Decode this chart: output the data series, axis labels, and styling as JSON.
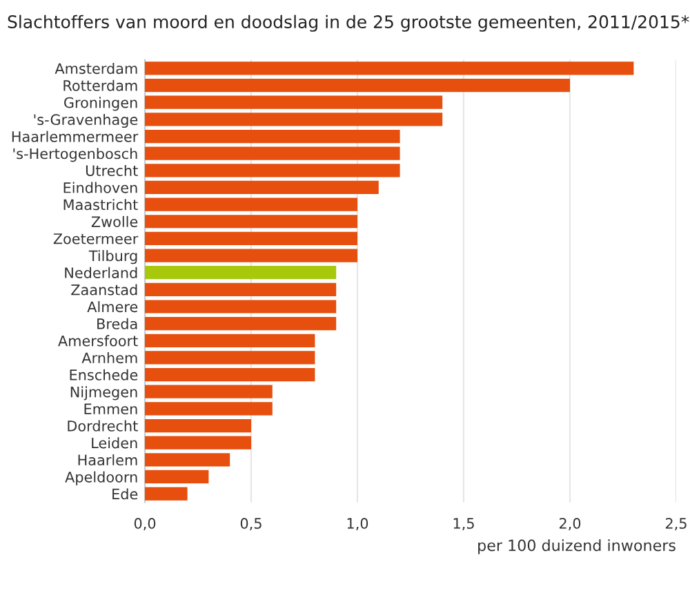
{
  "chart_data": {
    "type": "bar",
    "orientation": "horizontal",
    "title": "Slachtoffers van moord en doodslag in de 25 grootste gemeenten, 2011/2015*",
    "xlabel": "per 100 duizend inwoners",
    "categories": [
      "Amsterdam",
      "Rotterdam",
      "Groningen",
      "'s-Gravenhage",
      "Haarlemmermeer",
      "'s-Hertogenbosch",
      "Utrecht",
      "Eindhoven",
      "Maastricht",
      "Zwolle",
      "Zoetermeer",
      "Tilburg",
      "Nederland",
      "Zaanstad",
      "Almere",
      "Breda",
      "Amersfoort",
      "Arnhem",
      "Enschede",
      "Nijmegen",
      "Emmen",
      "Dordrecht",
      "Leiden",
      "Haarlem",
      "Apeldoorn",
      "Ede"
    ],
    "values": [
      2.3,
      2.0,
      1.4,
      1.4,
      1.2,
      1.2,
      1.2,
      1.1,
      1.0,
      1.0,
      1.0,
      1.0,
      0.9,
      0.9,
      0.9,
      0.9,
      0.8,
      0.8,
      0.8,
      0.6,
      0.6,
      0.5,
      0.5,
      0.4,
      0.3,
      0.2
    ],
    "colors": [
      "#e64f0e",
      "#e64f0e",
      "#e64f0e",
      "#e64f0e",
      "#e64f0e",
      "#e64f0e",
      "#e64f0e",
      "#e64f0e",
      "#e64f0e",
      "#e64f0e",
      "#e64f0e",
      "#e64f0e",
      "#a8c80c",
      "#e64f0e",
      "#e64f0e",
      "#e64f0e",
      "#e64f0e",
      "#e64f0e",
      "#e64f0e",
      "#e64f0e",
      "#e64f0e",
      "#e64f0e",
      "#e64f0e",
      "#e64f0e",
      "#e64f0e",
      "#e64f0e"
    ],
    "xlim": [
      0,
      2.5
    ],
    "xticks": [
      {
        "value": 0,
        "label": "0,0"
      },
      {
        "value": 0.5,
        "label": "0,5"
      },
      {
        "value": 1.0,
        "label": "1,0"
      },
      {
        "value": 1.5,
        "label": "1,5"
      },
      {
        "value": 2.0,
        "label": "2,0"
      },
      {
        "value": 2.5,
        "label": "2,5"
      }
    ],
    "grid": "x"
  }
}
